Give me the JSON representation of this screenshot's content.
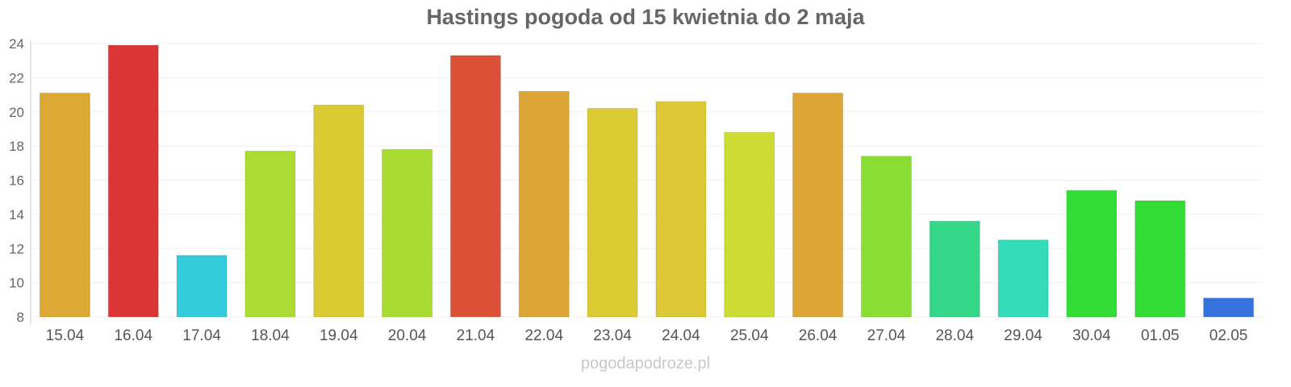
{
  "chart_data": {
    "type": "bar",
    "title": "Hastings pogoda od 15 kwietnia do 2 maja",
    "xlabel": "",
    "ylabel": "",
    "ylim": [
      8,
      24
    ],
    "yticks": [
      8,
      10,
      12,
      14,
      16,
      18,
      20,
      22,
      24
    ],
    "grid": true,
    "categories": [
      "15.04",
      "16.04",
      "17.04",
      "18.04",
      "19.04",
      "20.04",
      "21.04",
      "22.04",
      "23.04",
      "24.04",
      "25.04",
      "26.04",
      "27.04",
      "28.04",
      "29.04",
      "30.04",
      "01.05",
      "02.05"
    ],
    "values": [
      21.1,
      23.9,
      11.6,
      17.7,
      20.4,
      17.8,
      23.3,
      21.2,
      20.2,
      20.6,
      18.8,
      21.1,
      17.4,
      13.6,
      12.5,
      15.4,
      14.8,
      9.1
    ],
    "colors": [
      "#dba934",
      "#dc3535",
      "#33ccda",
      "#acdc33",
      "#dbcb33",
      "#a9dc33",
      "#dc5035",
      "#dca535",
      "#dccc33",
      "#dbc834",
      "#cddc33",
      "#dca535",
      "#8ade33",
      "#34d888",
      "#34dbb8",
      "#34dc36",
      "#34dc36",
      "#3473dc"
    ]
  },
  "watermark": "pogodapodroze.pl"
}
